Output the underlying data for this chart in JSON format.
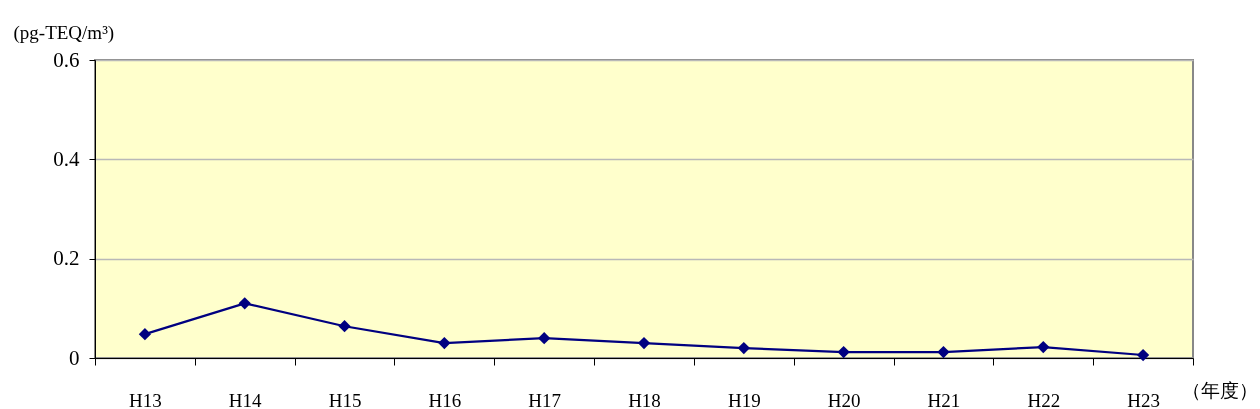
{
  "chart_data": {
    "type": "line",
    "ylabel": "(pg-TEQ/m³)",
    "xlabel": "（年度）",
    "categories": [
      "H13",
      "H14",
      "H15",
      "H16",
      "H17",
      "H18",
      "H19",
      "H20",
      "H21",
      "H22",
      "H23"
    ],
    "series": [
      {
        "color": "#000080",
        "values": [
          0.048,
          0.11,
          0.064,
          0.03,
          0.04,
          0.03,
          0.02,
          0.012,
          0.012,
          0.022,
          0.006
        ]
      }
    ],
    "ylim": [
      0,
      0.6
    ],
    "yticks": [
      0,
      0.2,
      0.4,
      0.6
    ],
    "grid": "y",
    "marker": "diamond",
    "line_style": "solid"
  }
}
